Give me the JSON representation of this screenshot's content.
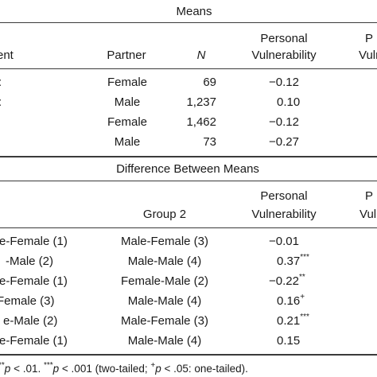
{
  "means_section": {
    "title": "Means",
    "headers": {
      "col1": "ent",
      "partner": "Partner",
      "n": "N",
      "pv_line1": "Personal",
      "pv_line2": "Vulnerability",
      "next_line1": "P",
      "next_line2": "Vulne"
    },
    "rows": [
      {
        "stub": ":",
        "partner": "Female",
        "n": "69",
        "pv": "−0.12"
      },
      {
        "stub": ":",
        "partner": "Male",
        "n": "1,237",
        "pv": "0.10"
      },
      {
        "stub": "",
        "partner": "Female",
        "n": "1,462",
        "pv": "−0.12"
      },
      {
        "stub": "",
        "partner": "Male",
        "n": "73",
        "pv": "−0.27"
      }
    ]
  },
  "diff_section": {
    "title": "Difference Between Means",
    "headers": {
      "group2": "Group 2",
      "pv_line1": "Personal",
      "pv_line2": "Vulnerability",
      "next_line1": "P",
      "next_line2": "Vuln"
    },
    "rows": [
      {
        "group1": "e-Female (1)",
        "group2": "Male-Female (3)",
        "value": "−0.01",
        "sig": ""
      },
      {
        "group1": "-Male (2)",
        "group2": "Male-Male (4)",
        "value": "0.37",
        "sig": "***"
      },
      {
        "group1": "e-Female (1)",
        "group2": "Female-Male (2)",
        "value": "−0.22",
        "sig": "**"
      },
      {
        "group1": "Female (3)",
        "group2": "Male-Male (4)",
        "value": "0.16",
        "sig": "+"
      },
      {
        "group1": "e-Male (2)",
        "group2": "Male-Female (3)",
        "value": "0.21",
        "sig": "***"
      },
      {
        "group1": "e-Female (1)",
        "group2": "Male-Male (4)",
        "value": "0.15",
        "sig": ""
      }
    ]
  },
  "footnote": {
    "lead": "**",
    "p1": "p",
    "t1": " < .01. ",
    "stars": "***",
    "p2": "p",
    "t2": " < .001 (two-tailed; ",
    "plus": "+",
    "p3": "p",
    "t3": " < .05: one-tailed)."
  }
}
